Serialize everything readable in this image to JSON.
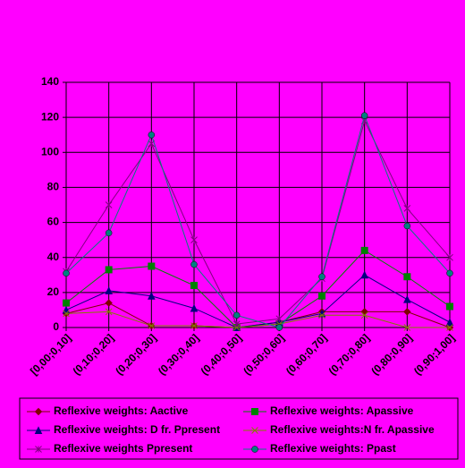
{
  "chart_data": {
    "type": "line",
    "categories": [
      "[0,00;0,10]",
      "(0,10;0,20]",
      "(0,20;0,30]",
      "(0,30;0,40]",
      "(0,40;0,50]",
      "(0,50;0,60]",
      "(0,60;0,70]",
      "(0,70;0,80]",
      "(0,80;0,90]",
      "(0,90;1,00]"
    ],
    "ylim": [
      0,
      140
    ],
    "yticks": [
      0,
      20,
      40,
      60,
      80,
      100,
      120,
      140
    ],
    "grid": true,
    "legend": "bottom",
    "series": [
      {
        "name": "Reflexive weights: Aactive",
        "color": "#800000",
        "marker": "diamond",
        "values": [
          8,
          14,
          1,
          1,
          0,
          3,
          9,
          9,
          9,
          0
        ]
      },
      {
        "name": "Reflexive weights: Apassive",
        "color": "#008000",
        "marker": "square",
        "values": [
          14,
          33,
          35,
          24,
          0,
          2,
          18,
          44,
          29,
          12
        ]
      },
      {
        "name": "Reflexive weights: D fr. Ppresent",
        "color": "#000080",
        "marker": "triangle",
        "values": [
          10,
          21,
          18,
          11,
          0,
          3,
          8,
          30,
          16,
          3
        ]
      },
      {
        "name": "Reflexive weights:N fr. Apassive",
        "color": "#808000",
        "marker": "x",
        "values": [
          8,
          9,
          1,
          1,
          0,
          2,
          7,
          7,
          0,
          0
        ]
      },
      {
        "name": "Reflexive weights Ppresent",
        "color": "#800080",
        "marker": "star",
        "values": [
          32,
          70,
          105,
          50,
          2,
          5,
          28,
          118,
          68,
          40
        ]
      },
      {
        "name": "Reflexive weights: Ppast",
        "color": "#008080",
        "marker": "circle",
        "values": [
          31,
          54,
          110,
          36,
          7,
          0,
          29,
          121,
          58,
          31
        ]
      }
    ]
  }
}
